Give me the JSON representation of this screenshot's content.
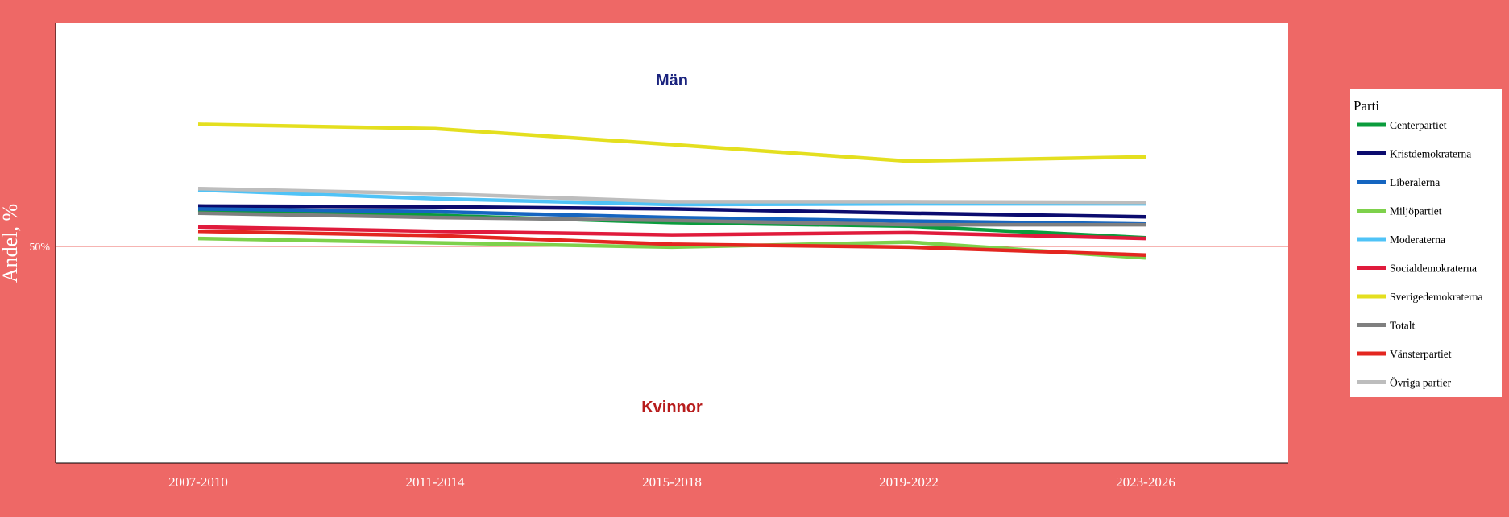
{
  "chart_data": {
    "type": "line",
    "ylabel": "Andel, %",
    "reference_line": {
      "value": 50,
      "label": "50%",
      "color": "#ee6866"
    },
    "annotations": {
      "top": {
        "text": "Män",
        "color": "#1a237e"
      },
      "bottom": {
        "text": "Kvinnor",
        "color": "#b71c1c"
      }
    },
    "categories": [
      "2007-2010",
      "2011-2014",
      "2015-2018",
      "2019-2022",
      "2023-2026"
    ],
    "ylim": [
      20,
      81
    ],
    "legend": {
      "title": "Parti",
      "position": "right"
    },
    "background": "#ee6866",
    "panel": "#ffffff",
    "series": [
      {
        "name": "Centerpartiet",
        "color": "#0a9c3c",
        "values": [
          55.0,
          54.3,
          53.3,
          52.8,
          51.2
        ]
      },
      {
        "name": "Kristdemokraterna",
        "color": "#0b0b6e",
        "values": [
          55.6,
          55.5,
          55.2,
          54.6,
          54.1
        ]
      },
      {
        "name": "Liberalerna",
        "color": "#1565c0",
        "values": [
          55.2,
          54.8,
          54.0,
          53.5,
          53.1
        ]
      },
      {
        "name": "Miljöpartiet",
        "color": "#7ed14b",
        "values": [
          51.1,
          50.5,
          49.9,
          50.6,
          48.4
        ]
      },
      {
        "name": "Moderaterna",
        "color": "#4fc3f7",
        "values": [
          57.8,
          56.6,
          55.8,
          55.9,
          55.9
        ]
      },
      {
        "name": "Socialdemokraterna",
        "color": "#e01b3c",
        "values": [
          52.7,
          52.1,
          51.6,
          51.9,
          51.1
        ]
      },
      {
        "name": "Sverigedemokraterna",
        "color": "#e4df1f",
        "values": [
          66.9,
          66.3,
          64.1,
          61.8,
          62.4
        ]
      },
      {
        "name": "Totalt",
        "color": "#7f7f7f",
        "values": [
          54.6,
          54.0,
          53.6,
          53.0,
          53.0
        ]
      },
      {
        "name": "Vänsterpartiet",
        "color": "#e32620",
        "values": [
          52.1,
          51.5,
          50.3,
          49.9,
          48.8
        ]
      },
      {
        "name": "Övriga partier",
        "color": "#bdbdbd",
        "values": [
          58.0,
          57.3,
          56.2,
          56.2,
          56.1
        ]
      }
    ]
  }
}
